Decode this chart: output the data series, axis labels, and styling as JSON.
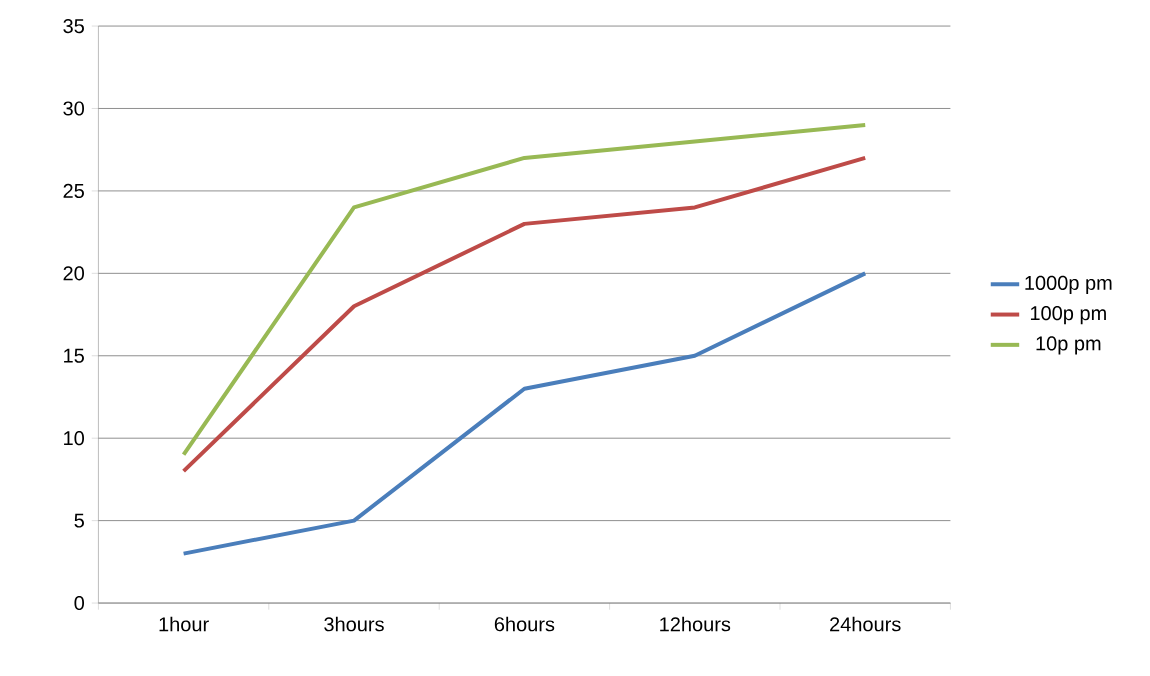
{
  "chart_data": {
    "type": "line",
    "categories": [
      "1hour",
      "3hours",
      "6hours",
      "12hours",
      "24hours"
    ],
    "series": [
      {
        "name": "1000p pm",
        "color": "#4a7ebb",
        "values": [
          3,
          5,
          13,
          15,
          20
        ]
      },
      {
        "name": "100p pm",
        "color": "#be4b48",
        "values": [
          8,
          18,
          23,
          24,
          27
        ]
      },
      {
        "name": "10p pm",
        "color": "#98b954",
        "values": [
          9,
          24,
          27,
          28,
          29
        ]
      }
    ],
    "ylim": [
      0,
      35
    ],
    "yticks": [
      0,
      5,
      10,
      15,
      20,
      25,
      30,
      35
    ],
    "grid": "y",
    "legend": "right",
    "marker": "none",
    "line_style": "solid"
  }
}
